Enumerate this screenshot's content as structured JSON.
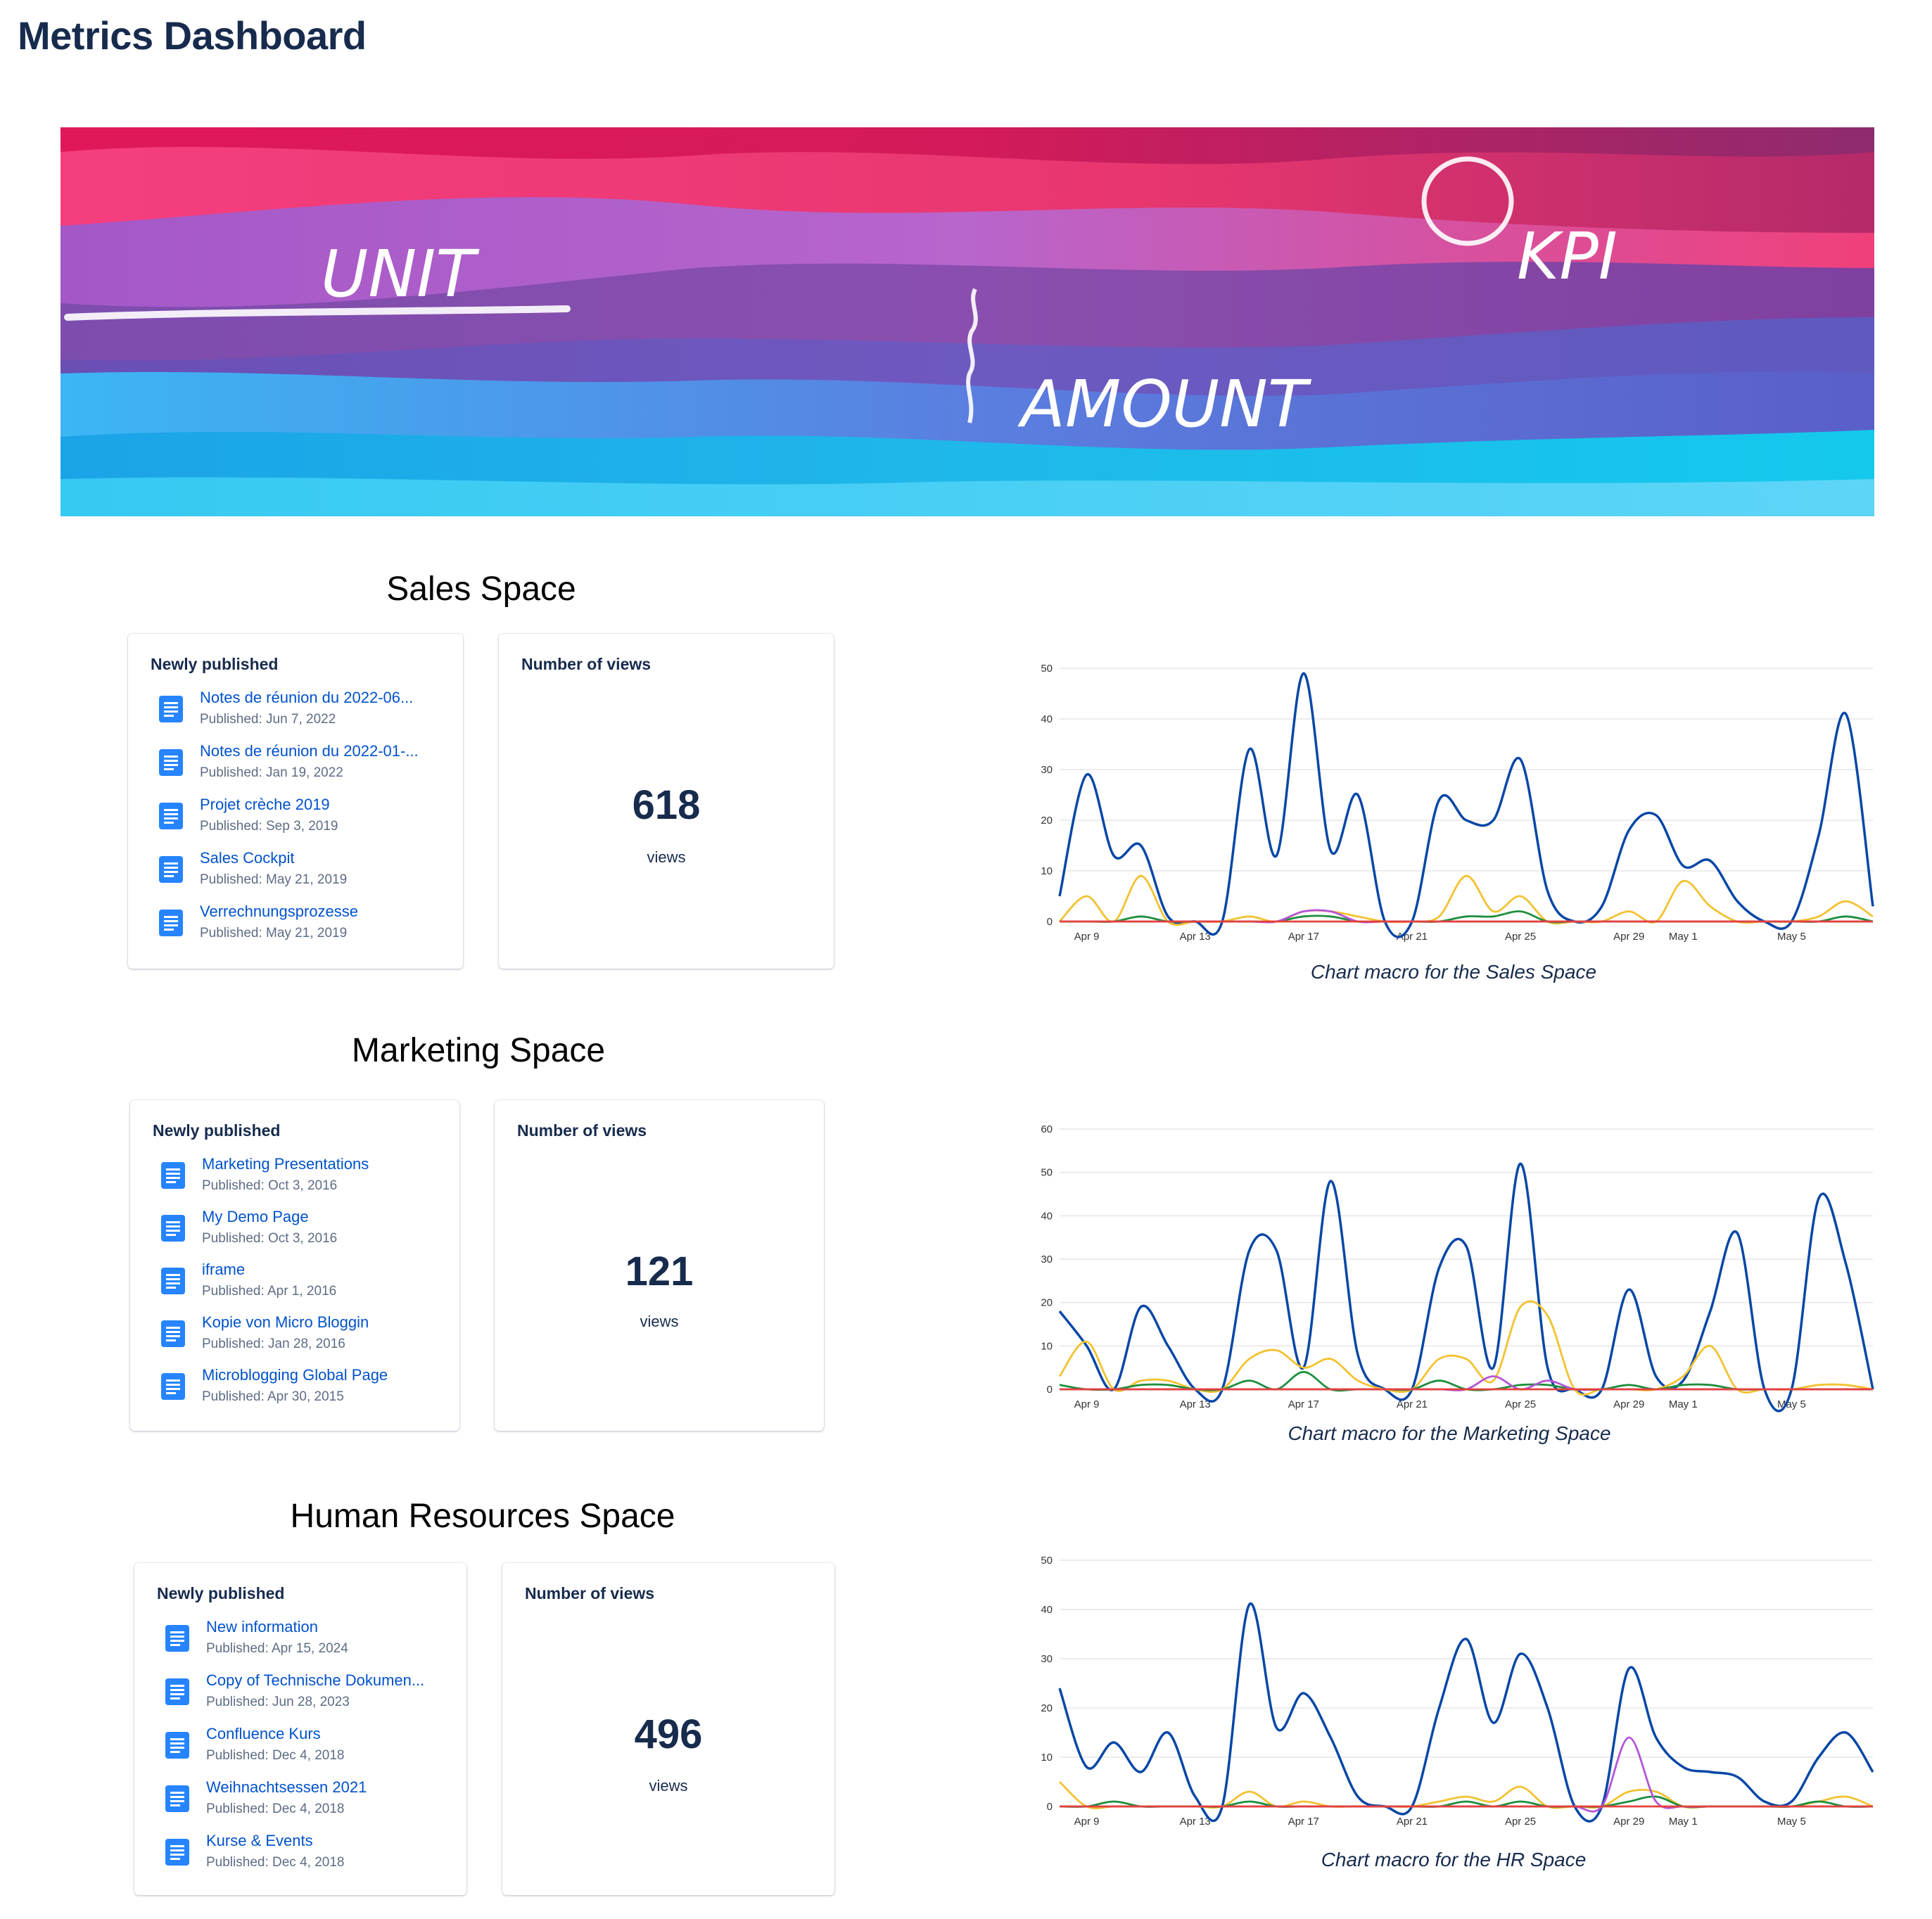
{
  "page": {
    "title": "Metrics Dashboard"
  },
  "banner": {
    "words": [
      "UNIT",
      "KPI",
      "AMOUNT"
    ]
  },
  "colors": {
    "link": "#0052CC",
    "heading": "#172B4D",
    "series": [
      "#0747A6",
      "#F2C230",
      "#1E8E3E",
      "#B455D6",
      "#E5413B"
    ]
  },
  "sections": [
    {
      "title": "Sales Space",
      "newly_published": {
        "heading": "Newly published",
        "items": [
          {
            "title": "Notes de réunion du 2022-06...",
            "published": "Published: Jun 7, 2022",
            "icon": "document-icon"
          },
          {
            "title": "Notes de réunion du 2022-01-...",
            "published": "Published: Jan 19, 2022",
            "icon": "document-icon"
          },
          {
            "title": "Projet crèche 2019",
            "published": "Published: Sep 3, 2019",
            "icon": "document-icon"
          },
          {
            "title": "Sales Cockpit",
            "published": "Published: May 21, 2019",
            "icon": "document-icon"
          },
          {
            "title": "Verrechnungsprozesse",
            "published": "Published: May 21, 2019",
            "icon": "document-icon"
          }
        ]
      },
      "views": {
        "heading": "Number of views",
        "count": "618",
        "label": "views"
      },
      "chart_caption": "Chart macro for the Sales Space"
    },
    {
      "title": "Marketing Space",
      "newly_published": {
        "heading": "Newly published",
        "items": [
          {
            "title": "Marketing Presentations",
            "published": "Published: Oct 3, 2016",
            "icon": "document-icon"
          },
          {
            "title": "My Demo Page",
            "published": "Published: Oct 3, 2016",
            "icon": "document-icon"
          },
          {
            "title": "iframe",
            "published": "Published: Apr 1, 2016",
            "icon": "document-icon"
          },
          {
            "title": "Kopie von Micro Bloggin",
            "published": "Published: Jan 28, 2016",
            "icon": "document-icon"
          },
          {
            "title": "Microblogging Global Page",
            "published": "Published: Apr 30, 2015",
            "icon": "document-icon"
          }
        ]
      },
      "views": {
        "heading": "Number of views",
        "count": "121",
        "label": "views"
      },
      "chart_caption": "Chart macro for the Marketing Space"
    },
    {
      "title": "Human Resources Space",
      "newly_published": {
        "heading": "Newly published",
        "items": [
          {
            "title": "New information",
            "published": "Published: Apr 15, 2024",
            "icon": "document-icon"
          },
          {
            "title": "Copy of Technische Dokumen...",
            "published": "Published: Jun 28, 2023",
            "icon": "document-icon"
          },
          {
            "title": "Confluence Kurs",
            "published": "Published: Dec 4, 2018",
            "icon": "document-icon"
          },
          {
            "title": "Weihnachtsessen 2021",
            "published": "Published: Dec 4, 2018",
            "icon": "document-icon"
          },
          {
            "title": "Kurse & Events",
            "published": "Published: Dec 4, 2018",
            "icon": "document-icon"
          }
        ]
      },
      "views": {
        "heading": "Number of views",
        "count": "496",
        "label": "views"
      },
      "chart_caption": "Chart macro for the HR Space"
    }
  ],
  "chart_data": [
    {
      "type": "line",
      "x_ticks": [
        "Apr 9",
        "Apr 13",
        "Apr 17",
        "Apr 21",
        "Apr 25",
        "Apr 29",
        "May 1",
        "May 5"
      ],
      "x_tick_days": [
        1,
        5,
        9,
        13,
        17,
        21,
        23,
        27
      ],
      "ylim": [
        0,
        50
      ],
      "y_ticks": [
        0,
        10,
        20,
        30,
        40,
        50
      ],
      "grid": true,
      "series": [
        {
          "color": "#0747A6",
          "days": [
            0,
            1,
            2,
            3,
            4,
            5,
            6,
            7,
            8,
            9,
            10,
            11,
            12,
            13,
            14,
            15,
            16,
            17,
            18,
            19,
            20,
            21,
            22,
            23,
            24,
            25,
            26,
            27,
            28,
            29,
            30
          ],
          "values": [
            5,
            29,
            13,
            15,
            1,
            0,
            0,
            34,
            13,
            49,
            14,
            25,
            0,
            0,
            24,
            20,
            20,
            32,
            6,
            0,
            3,
            18,
            21,
            11,
            12,
            4,
            0,
            0,
            17,
            41,
            3
          ]
        },
        {
          "color": "#F2C230",
          "days": [
            0,
            1,
            2,
            3,
            4,
            5,
            6,
            7,
            8,
            9,
            10,
            11,
            12,
            13,
            14,
            15,
            16,
            17,
            18,
            19,
            20,
            21,
            22,
            23,
            24,
            25,
            26,
            27,
            28,
            29,
            30
          ],
          "values": [
            0,
            5,
            0,
            9,
            0,
            0,
            0,
            1,
            0,
            2,
            2,
            1,
            0,
            0,
            1,
            9,
            2,
            5,
            0,
            0,
            0,
            2,
            0,
            8,
            3,
            0,
            0,
            0,
            1,
            4,
            1
          ]
        },
        {
          "color": "#1E8E3E",
          "days": [
            0,
            1,
            2,
            3,
            4,
            5,
            6,
            7,
            8,
            9,
            10,
            11,
            12,
            13,
            14,
            15,
            16,
            17,
            18,
            19,
            20,
            21,
            22,
            23,
            24,
            25,
            26,
            27,
            28,
            29,
            30
          ],
          "values": [
            0,
            0,
            0,
            1,
            0,
            0,
            0,
            0,
            0,
            1,
            1,
            0,
            0,
            0,
            0,
            1,
            1,
            2,
            0,
            0,
            0,
            0,
            0,
            0,
            0,
            0,
            0,
            0,
            0,
            1,
            0
          ]
        },
        {
          "color": "#B455D6",
          "days": [
            0,
            1,
            2,
            3,
            4,
            5,
            6,
            7,
            8,
            9,
            10,
            11,
            12,
            13,
            14,
            15,
            16,
            17,
            18,
            19,
            20,
            21,
            22,
            23,
            24,
            25,
            26,
            27,
            28,
            29,
            30
          ],
          "values": [
            0,
            0,
            0,
            0,
            0,
            0,
            0,
            0,
            0,
            2,
            2,
            0,
            0,
            0,
            0,
            0,
            0,
            0,
            0,
            0,
            0,
            0,
            0,
            0,
            0,
            0,
            0,
            0,
            0,
            0,
            0
          ]
        },
        {
          "color": "#E5413B",
          "days": [
            0,
            30
          ],
          "values": [
            0,
            0
          ]
        }
      ]
    },
    {
      "type": "line",
      "x_ticks": [
        "Apr 9",
        "Apr 13",
        "Apr 17",
        "Apr 21",
        "Apr 25",
        "Apr 29",
        "May 1",
        "May 5"
      ],
      "x_tick_days": [
        1,
        5,
        9,
        13,
        17,
        21,
        23,
        27
      ],
      "ylim": [
        0,
        60
      ],
      "y_ticks": [
        0,
        10,
        20,
        30,
        40,
        50,
        60
      ],
      "grid": true,
      "series": [
        {
          "color": "#0747A6",
          "days": [
            0,
            1,
            2,
            3,
            4,
            5,
            6,
            7,
            8,
            9,
            10,
            11,
            12,
            13,
            14,
            15,
            16,
            17,
            18,
            19,
            20,
            21,
            22,
            23,
            24,
            25,
            26,
            27,
            28,
            29,
            30
          ],
          "values": [
            18,
            10,
            0,
            19,
            10,
            0,
            0,
            32,
            32,
            5,
            48,
            8,
            0,
            0,
            28,
            33,
            5,
            52,
            5,
            0,
            0,
            23,
            3,
            2,
            18,
            36,
            0,
            0,
            44,
            29,
            0
          ]
        },
        {
          "color": "#F2C230",
          "days": [
            0,
            1,
            2,
            3,
            4,
            5,
            6,
            7,
            8,
            9,
            10,
            11,
            12,
            13,
            14,
            15,
            16,
            17,
            18,
            19,
            20,
            21,
            22,
            23,
            24,
            25,
            26,
            27,
            28,
            29,
            30
          ],
          "values": [
            3,
            11,
            0,
            2,
            2,
            0,
            0,
            7,
            9,
            5,
            7,
            2,
            0,
            0,
            7,
            7,
            2,
            19,
            17,
            0,
            0,
            0,
            0,
            3,
            10,
            0,
            0,
            0,
            1,
            1,
            0
          ]
        },
        {
          "color": "#1E8E3E",
          "days": [
            0,
            1,
            2,
            3,
            4,
            5,
            6,
            7,
            8,
            9,
            10,
            11,
            12,
            13,
            14,
            15,
            16,
            17,
            18,
            19,
            20,
            21,
            22,
            23,
            24,
            25,
            26,
            27,
            28,
            29,
            30
          ],
          "values": [
            1,
            0,
            0,
            1,
            1,
            0,
            0,
            2,
            0,
            4,
            0,
            0,
            0,
            0,
            2,
            0,
            0,
            1,
            1,
            0,
            0,
            1,
            0,
            1,
            1,
            0,
            0,
            0,
            0,
            0,
            0
          ]
        },
        {
          "color": "#B455D6",
          "days": [
            0,
            1,
            2,
            3,
            4,
            5,
            6,
            7,
            8,
            9,
            10,
            11,
            12,
            13,
            14,
            15,
            16,
            17,
            18,
            19,
            20,
            21,
            22,
            23,
            24,
            25,
            26,
            27,
            28,
            29,
            30
          ],
          "values": [
            0,
            0,
            0,
            0,
            0,
            0,
            0,
            0,
            0,
            0,
            0,
            0,
            0,
            0,
            0,
            0,
            3,
            0,
            2,
            0,
            0,
            0,
            0,
            0,
            0,
            0,
            0,
            0,
            0,
            0,
            0
          ]
        },
        {
          "color": "#E5413B",
          "days": [
            0,
            30
          ],
          "values": [
            0,
            0
          ]
        }
      ]
    },
    {
      "type": "line",
      "x_ticks": [
        "Apr 9",
        "Apr 13",
        "Apr 17",
        "Apr 21",
        "Apr 25",
        "Apr 29",
        "May 1",
        "May 5"
      ],
      "x_tick_days": [
        1,
        5,
        9,
        13,
        17,
        21,
        23,
        27
      ],
      "ylim": [
        0,
        50
      ],
      "y_ticks": [
        0,
        10,
        20,
        30,
        40,
        50
      ],
      "grid": true,
      "series": [
        {
          "color": "#0747A6",
          "days": [
            0,
            1,
            2,
            3,
            4,
            5,
            6,
            7,
            8,
            9,
            10,
            11,
            12,
            13,
            14,
            15,
            16,
            17,
            18,
            19,
            20,
            21,
            22,
            23,
            24,
            25,
            26,
            27,
            28,
            29,
            30
          ],
          "values": [
            24,
            8,
            13,
            7,
            15,
            2,
            0,
            41,
            16,
            23,
            14,
            2,
            0,
            0,
            20,
            34,
            17,
            31,
            20,
            0,
            0,
            28,
            14,
            8,
            7,
            6,
            1,
            1,
            10,
            15,
            7
          ]
        },
        {
          "color": "#F2C230",
          "days": [
            0,
            1,
            2,
            3,
            4,
            5,
            6,
            7,
            8,
            9,
            10,
            11,
            12,
            13,
            14,
            15,
            16,
            17,
            18,
            19,
            20,
            21,
            22,
            23,
            24,
            25,
            26,
            27,
            28,
            29,
            30
          ],
          "values": [
            5,
            0,
            0,
            0,
            0,
            0,
            0,
            3,
            0,
            1,
            0,
            0,
            0,
            0,
            1,
            2,
            1,
            4,
            0,
            0,
            0,
            3,
            3,
            0,
            0,
            0,
            0,
            0,
            1,
            2,
            0
          ]
        },
        {
          "color": "#1E8E3E",
          "days": [
            0,
            1,
            2,
            3,
            4,
            5,
            6,
            7,
            8,
            9,
            10,
            11,
            12,
            13,
            14,
            15,
            16,
            17,
            18,
            19,
            20,
            21,
            22,
            23,
            24,
            25,
            26,
            27,
            28,
            29,
            30
          ],
          "values": [
            0,
            0,
            1,
            0,
            0,
            0,
            0,
            1,
            0,
            0,
            0,
            0,
            0,
            0,
            0,
            1,
            0,
            1,
            0,
            0,
            0,
            1,
            2,
            0,
            0,
            0,
            0,
            0,
            1,
            0,
            0
          ]
        },
        {
          "color": "#B455D6",
          "days": [
            0,
            1,
            2,
            3,
            4,
            5,
            6,
            7,
            8,
            9,
            10,
            11,
            12,
            13,
            14,
            15,
            16,
            17,
            18,
            19,
            20,
            21,
            22,
            23,
            24,
            25,
            26,
            27,
            28,
            29,
            30
          ],
          "values": [
            0,
            0,
            0,
            0,
            0,
            0,
            0,
            0,
            0,
            0,
            0,
            0,
            0,
            0,
            0,
            0,
            0,
            0,
            0,
            0,
            0,
            14,
            1,
            0,
            0,
            0,
            0,
            0,
            0,
            0,
            0
          ]
        },
        {
          "color": "#E5413B",
          "days": [
            0,
            30
          ],
          "values": [
            0,
            0
          ]
        }
      ]
    }
  ]
}
